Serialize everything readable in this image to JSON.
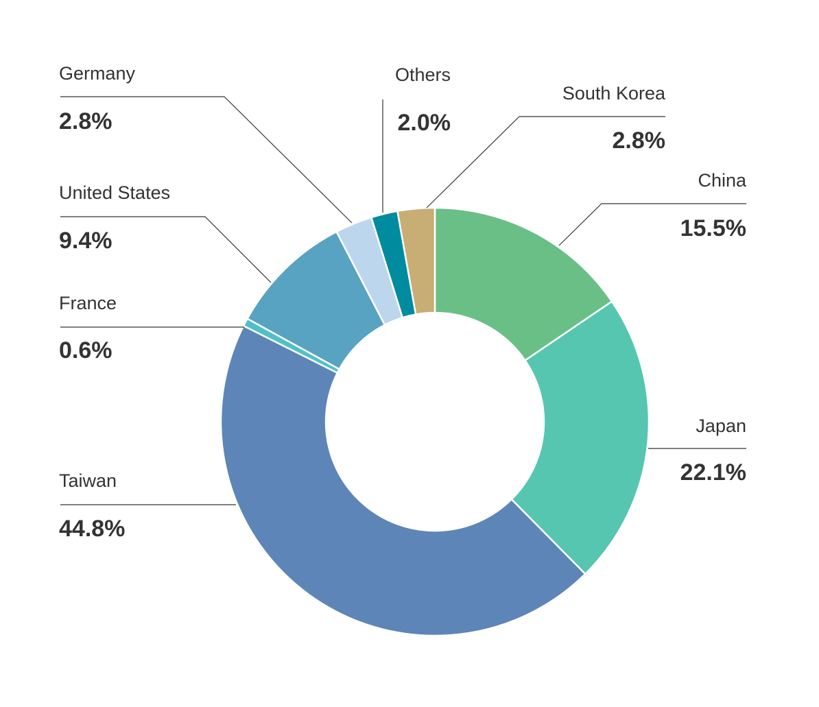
{
  "chart_data": {
    "type": "pie",
    "donut": true,
    "start": "12 o'clock, clockwise",
    "slices": [
      {
        "label": "China",
        "value": 15.5,
        "value_label": "15.5%",
        "color": "#6abf87"
      },
      {
        "label": "Japan",
        "value": 22.1,
        "value_label": "22.1%",
        "color": "#56c6b0"
      },
      {
        "label": "Taiwan",
        "value": 44.8,
        "value_label": "44.8%",
        "color": "#5e85b8"
      },
      {
        "label": "France",
        "value": 0.6,
        "value_label": "0.6%",
        "color": "#4fc0c8"
      },
      {
        "label": "United States",
        "value": 9.4,
        "value_label": "9.4%",
        "color": "#58a2c2"
      },
      {
        "label": "Germany",
        "value": 2.8,
        "value_label": "2.8%",
        "color": "#bcd6ee"
      },
      {
        "label": "Others",
        "value": 2.0,
        "value_label": "2.0%",
        "color": "#008c9e"
      },
      {
        "label": "South Korea",
        "value": 2.8,
        "value_label": "2.8%",
        "color": "#c8ad74"
      }
    ]
  }
}
